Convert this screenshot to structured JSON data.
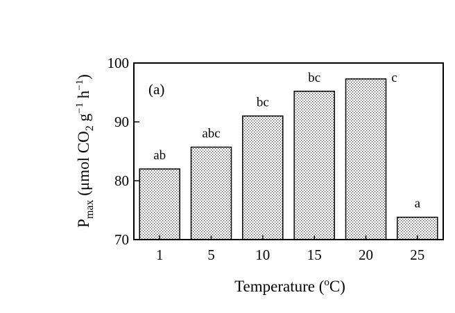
{
  "chart_data": {
    "type": "bar",
    "panel_label": "(a)",
    "categories": [
      "1",
      "5",
      "10",
      "15",
      "20",
      "25"
    ],
    "values": [
      82,
      85.7,
      91,
      95.2,
      97.3,
      73.8
    ],
    "significance_letters": [
      "ab",
      "abc",
      "bc",
      "bc",
      "c",
      "a"
    ],
    "xlabel": {
      "text": "Temperature (",
      "sup": "o",
      "tail": "C)"
    },
    "ylabel": {
      "p": "P",
      "sub_max": "max",
      "unit_start": " (μmol CO",
      "sub_2": "2",
      "unit_g": " g",
      "sup_neg1_a": "−1",
      "unit_h": " h",
      "sup_neg1_b": "−1",
      "unit_end": ")"
    },
    "ylim": [
      70,
      100
    ],
    "yticks": [
      "70",
      "80",
      "90",
      "100"
    ],
    "fill_pattern": "stipple"
  }
}
